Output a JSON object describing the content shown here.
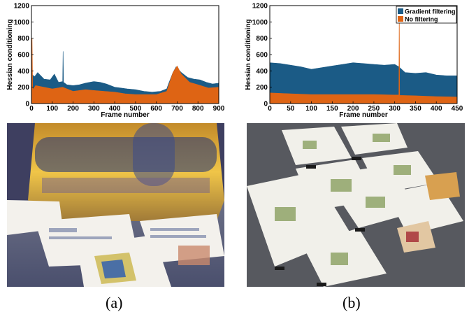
{
  "colors": {
    "gradient_filtering": "#1b5b86",
    "no_filtering": "#de6414"
  },
  "chart_data": [
    {
      "type": "area",
      "xlabel": "Frame number",
      "ylabel": "Hessian conditioning",
      "xlim": [
        0,
        900
      ],
      "ylim": [
        0,
        1200
      ],
      "xticks": [
        0,
        100,
        200,
        300,
        400,
        500,
        600,
        700,
        800,
        900
      ],
      "yticks": [
        0,
        200,
        400,
        600,
        800,
        1000,
        1200
      ],
      "legend": "none",
      "series": [
        {
          "color": "#1b5b86",
          "x": [
            0,
            15,
            30,
            60,
            90,
            110,
            130,
            150,
            152,
            154,
            170,
            200,
            230,
            260,
            300,
            330,
            360,
            400,
            430,
            460,
            500,
            540,
            580,
            620,
            650,
            660,
            680,
            695,
            705,
            720,
            750,
            780,
            810,
            840,
            870,
            900
          ],
          "values": [
            360,
            330,
            380,
            300,
            290,
            360,
            260,
            270,
            640,
            260,
            230,
            220,
            230,
            250,
            270,
            260,
            240,
            200,
            190,
            180,
            170,
            150,
            140,
            150,
            180,
            250,
            380,
            450,
            420,
            380,
            320,
            300,
            290,
            260,
            240,
            250
          ]
        },
        {
          "color": "#de6414",
          "x": [
            0,
            3,
            6,
            20,
            60,
            100,
            150,
            200,
            260,
            300,
            350,
            400,
            450,
            500,
            550,
            600,
            650,
            680,
            700,
            720,
            760,
            800,
            850,
            900
          ],
          "values": [
            160,
            800,
            170,
            220,
            200,
            180,
            200,
            150,
            170,
            160,
            150,
            140,
            120,
            110,
            110,
            110,
            150,
            380,
            460,
            360,
            260,
            230,
            190,
            200
          ]
        }
      ]
    },
    {
      "type": "area",
      "xlabel": "Frame number",
      "ylabel": "Hessian conditioning",
      "xlim": [
        0,
        450
      ],
      "ylim": [
        0,
        1200
      ],
      "xticks": [
        0,
        50,
        100,
        150,
        200,
        250,
        300,
        350,
        400,
        450
      ],
      "yticks": [
        0,
        200,
        400,
        600,
        800,
        1000,
        1200
      ],
      "legend": "top-right",
      "series": [
        {
          "name": "Gradient filtering",
          "color": "#1b5b86",
          "x": [
            0,
            25,
            50,
            75,
            100,
            125,
            150,
            175,
            200,
            225,
            250,
            275,
            300,
            310,
            325,
            350,
            375,
            400,
            425,
            450
          ],
          "values": [
            500,
            490,
            470,
            450,
            420,
            440,
            460,
            480,
            500,
            490,
            480,
            470,
            480,
            450,
            380,
            370,
            380,
            350,
            340,
            340
          ]
        },
        {
          "name": "No filtering",
          "color": "#de6414",
          "x": [
            0,
            50,
            100,
            150,
            200,
            250,
            300,
            310,
            311,
            312,
            313,
            350,
            400,
            450
          ],
          "values": [
            130,
            120,
            110,
            110,
            110,
            110,
            105,
            105,
            1200,
            105,
            100,
            95,
            85,
            80
          ]
        }
      ]
    }
  ],
  "captions": {
    "a": "(a)",
    "b": "(b)"
  }
}
